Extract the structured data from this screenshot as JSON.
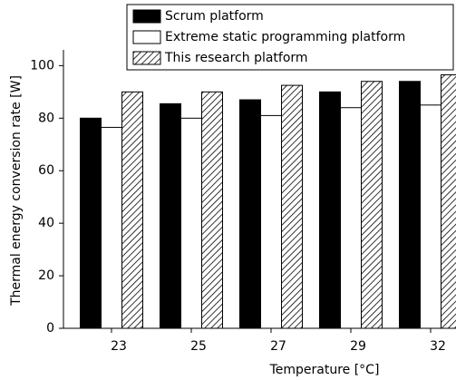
{
  "chart_data": {
    "type": "bar",
    "x_label": "Temperature [°C]",
    "y_label": "Thermal energy conversion rate [W]",
    "categories": [
      "23",
      "25",
      "27",
      "29",
      "32"
    ],
    "series": [
      {
        "name": "Scrum platform",
        "color": "#000000",
        "values": [
          80,
          85.5,
          87,
          90,
          94
        ]
      },
      {
        "name": "Extreme static programming platform",
        "color": "#ffffff",
        "values": [
          76.5,
          80,
          81,
          84,
          85
        ]
      },
      {
        "name": "This research platform",
        "color": "#ffffff",
        "hatch": true,
        "values": [
          90,
          90,
          92.5,
          94,
          96.5
        ]
      }
    ],
    "ylim": [
      0,
      106
    ],
    "yticks": [
      0,
      20,
      40,
      60,
      80,
      100
    ],
    "grid": false,
    "legend": "top"
  }
}
